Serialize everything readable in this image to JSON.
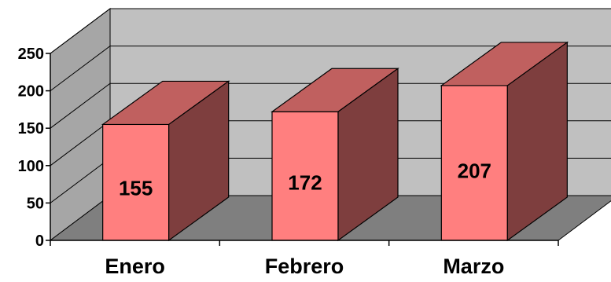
{
  "chart_data": {
    "type": "bar",
    "style": "3d-column",
    "categories": [
      "Enero",
      "Febrero",
      "Marzo"
    ],
    "values": [
      155,
      172,
      207
    ],
    "data_labels": [
      "155",
      "172",
      "207"
    ],
    "y_ticks": [
      "0",
      "50",
      "100",
      "150",
      "200",
      "250"
    ],
    "ylim": [
      0,
      250
    ],
    "grid": true,
    "legend": "none",
    "colors": {
      "bar_front": "#ff7f7f",
      "bar_top": "#c0605f",
      "bar_side": "#7e3e3e",
      "back_wall": "#c0c0c0",
      "side_wall": "#a6a6a6",
      "floor": "#7f7f7f",
      "outline": "#000000"
    }
  }
}
